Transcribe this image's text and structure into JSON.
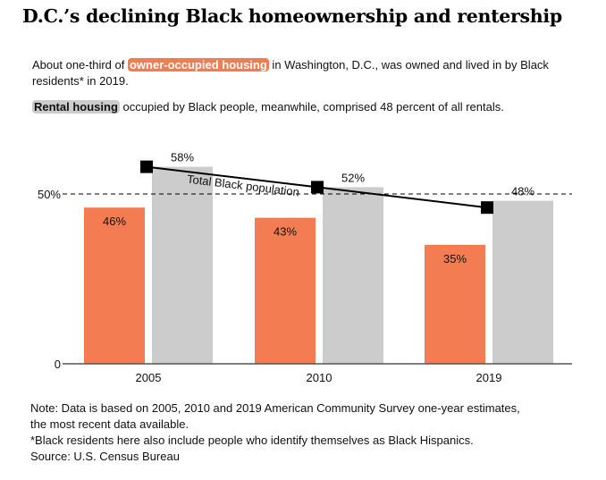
{
  "title": "D.C.’s declining Black homeownership and rentership",
  "intro": {
    "line1_before": "About one-third of ",
    "line1_highlight": "owner-occupied housing",
    "line1_after": " in Washington, D.C., was owned and lived in by Black residents* in 2019.",
    "line2_highlight": "Rental housing",
    "line2_after": " occupied by Black people, meanwhile, comprised 48 percent of all rentals."
  },
  "colors": {
    "owner": "#f47c52",
    "rental": "#cccccc",
    "line": "#000000",
    "axis": "#555555"
  },
  "chart_data": {
    "type": "bar",
    "title": "D.C.’s declining Black homeownership and rentership",
    "categories": [
      "2005",
      "2010",
      "2019"
    ],
    "series": [
      {
        "name": "Owner-occupied housing (Black share)",
        "values": [
          46,
          43,
          35
        ],
        "labels": [
          "46%",
          "43%",
          "35%"
        ]
      },
      {
        "name": "Rental housing (Black share)",
        "values": [
          58,
          52,
          48
        ],
        "labels": [
          "58%",
          "52%",
          "48%"
        ]
      }
    ],
    "line_series": {
      "name": "Total Black population",
      "label": "Total Black population",
      "values": [
        58,
        52,
        46
      ]
    },
    "reference_line": {
      "value": 50,
      "label": "50%",
      "style": "dashed"
    },
    "ytick_labels": [
      "0",
      "50%"
    ],
    "yticks": [
      0,
      50
    ],
    "ylim": [
      0,
      60
    ],
    "xlabel": "",
    "ylabel": "",
    "grid": false,
    "legend": "inline"
  },
  "notes": {
    "line1": "Note: Data is based on 2005, 2010 and 2019 American Community Survey one-year estimates,",
    "line2": "the most recent data available.",
    "line3": "*Black residents here also include people who identify themselves as Black Hispanics.",
    "line4": "Source: U.S. Census Bureau"
  }
}
